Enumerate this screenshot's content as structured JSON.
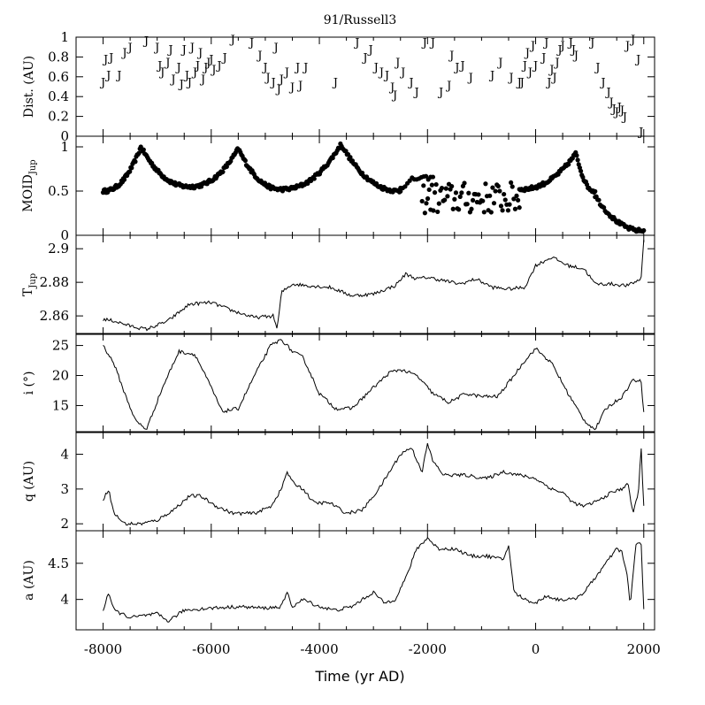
{
  "chart_data": {
    "type": "line",
    "title": "91/Russell3",
    "xlabel": "Time (yr AD)",
    "xlim": [
      -8500,
      2200
    ],
    "x_ticks": [
      -8000,
      -6000,
      -4000,
      -2000,
      0,
      2000
    ],
    "x_tick_labels": [
      "-8000",
      "-6000",
      "-4000",
      "-2000",
      "0",
      "2000"
    ],
    "panels": [
      {
        "key": "dist",
        "type": "scatter",
        "ylabel_main": "Dist. (AU)",
        "ylabel_sub": "",
        "ylim": [
          0,
          1
        ],
        "y_ticks": [
          0,
          0.2,
          0.4,
          0.6,
          0.8,
          1
        ],
        "y_tick_labels": [
          "0",
          "0.2",
          "0.4",
          "0.6",
          "0.8",
          "1"
        ],
        "marker": "J",
        "x": [
          -8000,
          -7950,
          -7900,
          -7850,
          -7700,
          -7600,
          -7500,
          -7200,
          -7000,
          -6950,
          -6900,
          -6800,
          -6750,
          -6700,
          -6600,
          -6550,
          -6500,
          -6450,
          -6400,
          -6350,
          -6300,
          -6250,
          -6200,
          -6150,
          -6100,
          -6050,
          -6000,
          -5950,
          -5850,
          -5750,
          -5600,
          -5250,
          -5100,
          -5000,
          -4950,
          -4850,
          -4800,
          -4750,
          -4700,
          -4600,
          -4500,
          -4400,
          -4350,
          -4250,
          -3700,
          -3300,
          -3150,
          -3050,
          -2950,
          -2850,
          -2750,
          -2650,
          -2600,
          -2550,
          -2450,
          -2300,
          -2200,
          -2050,
          -1900,
          -1750,
          -1600,
          -1550,
          -1450,
          -1350,
          -1200,
          -800,
          -650,
          -450,
          -300,
          -250,
          -200,
          -150,
          -100,
          -50,
          0,
          150,
          200,
          250,
          300,
          350,
          400,
          450,
          500,
          650,
          700,
          750,
          1050,
          1150,
          1250,
          1350,
          1400,
          1450,
          1500,
          1550,
          1600,
          1650,
          1700,
          1800,
          1900,
          1950
        ],
        "y": [
          0.55,
          0.78,
          0.62,
          0.8,
          0.62,
          0.85,
          0.9,
          0.97,
          0.9,
          0.72,
          0.65,
          0.75,
          0.88,
          0.58,
          0.7,
          0.53,
          0.88,
          0.62,
          0.55,
          0.9,
          0.65,
          0.72,
          0.85,
          0.58,
          0.7,
          0.75,
          0.78,
          0.68,
          0.72,
          0.8,
          0.98,
          0.95,
          0.82,
          0.7,
          0.6,
          0.55,
          0.9,
          0.48,
          0.58,
          0.65,
          0.5,
          0.7,
          0.52,
          0.7,
          0.55,
          0.95,
          0.8,
          0.88,
          0.7,
          0.65,
          0.62,
          0.5,
          0.42,
          0.75,
          0.65,
          0.55,
          0.45,
          0.95,
          0.95,
          0.45,
          0.52,
          0.82,
          0.7,
          0.72,
          0.6,
          0.62,
          0.75,
          0.6,
          0.55,
          0.55,
          0.72,
          0.85,
          0.65,
          0.92,
          0.72,
          0.8,
          0.95,
          0.55,
          0.68,
          0.6,
          0.75,
          0.88,
          0.92,
          0.95,
          0.88,
          0.82,
          0.95,
          0.7,
          0.55,
          0.45,
          0.35,
          0.28,
          0.25,
          0.3,
          0.27,
          0.2,
          0.92,
          0.98,
          0.78,
          0.05
        ],
        "y_label_offsets": [
          0
        ],
        "cap": 1
      },
      {
        "key": "moid",
        "type": "scatter",
        "ylabel_main": "MOID",
        "ylabel_sub": "Jup",
        "ylim": [
          0,
          1.12
        ],
        "y_ticks": [
          0,
          0.5,
          1
        ],
        "y_tick_labels": [
          "0",
          "0.5",
          "1"
        ],
        "marker": "dot",
        "series": [
          {
            "name": "",
            "shape": "peak",
            "x0": -8000,
            "x1": -6400,
            "xp": -7300,
            "y0": 0.5,
            "yp": 1.0,
            "y1": 0.55,
            "n": 95
          },
          {
            "name": "",
            "shape": "peak",
            "x0": -6400,
            "x1": -4700,
            "xp": -5500,
            "y0": 0.55,
            "yp": 0.98,
            "y1": 0.52,
            "n": 95
          },
          {
            "name": "",
            "shape": "peak",
            "x0": -4700,
            "x1": -2500,
            "xp": -3600,
            "y0": 0.52,
            "yp": 1.03,
            "y1": 0.5,
            "n": 110
          },
          {
            "name": "",
            "shape": "peak",
            "x0": -2500,
            "x1": -1900,
            "xp": -2300,
            "y0": 0.55,
            "yp": 0.63,
            "y1": 0.65,
            "n": 15
          },
          {
            "name": "",
            "shape": "noisy",
            "x0": -2100,
            "x1": -300,
            "base": 0.42,
            "amp": 0.18,
            "n": 70
          },
          {
            "name": "",
            "shape": "peak",
            "x0": -300,
            "x1": 1100,
            "xp": 750,
            "y0": 0.52,
            "yp": 0.93,
            "y1": 0.5,
            "n": 75
          },
          {
            "name": "",
            "shape": "peak",
            "x0": 1100,
            "x1": 2000,
            "xp": 1100,
            "y0": 0.45,
            "yp": 0.45,
            "y1": 0.05,
            "n": 40
          }
        ]
      },
      {
        "key": "tjup",
        "type": "line",
        "ylabel_main": "T",
        "ylabel_sub": "Jup",
        "ylim": [
          2.849,
          2.908
        ],
        "y_ticks": [
          2.86,
          2.88,
          2.9
        ],
        "y_tick_labels": [
          "2.86",
          "2.88",
          "2.9"
        ],
        "x": [
          -8000,
          -7800,
          -7500,
          -7200,
          -6800,
          -6400,
          -6000,
          -5600,
          -5200,
          -4850,
          -4780,
          -4700,
          -4500,
          -4200,
          -3800,
          -3400,
          -3000,
          -2600,
          -2400,
          -2200,
          -2000,
          -1700,
          -1400,
          -1100,
          -800,
          -500,
          -200,
          0,
          300,
          600,
          900,
          1100,
          1400,
          1700,
          1950,
          2000
        ],
        "y": [
          2.858,
          2.857,
          2.854,
          2.852,
          2.857,
          2.867,
          2.868,
          2.863,
          2.859,
          2.86,
          2.852,
          2.874,
          2.879,
          2.878,
          2.877,
          2.872,
          2.873,
          2.878,
          2.885,
          2.882,
          2.883,
          2.881,
          2.879,
          2.882,
          2.877,
          2.876,
          2.877,
          2.89,
          2.895,
          2.89,
          2.888,
          2.879,
          2.879,
          2.878,
          2.882,
          2.906
        ]
      },
      {
        "key": "inc",
        "type": "line",
        "ylabel_main": "i (°)",
        "ylabel_sub": "",
        "ylim": [
          10.5,
          27
        ],
        "y_ticks": [
          15,
          20,
          25
        ],
        "y_tick_labels": [
          "15",
          "20",
          "25"
        ],
        "x": [
          -8000,
          -7800,
          -7600,
          -7400,
          -7200,
          -6900,
          -6600,
          -6300,
          -6000,
          -5800,
          -5500,
          -5200,
          -4900,
          -4700,
          -4500,
          -4300,
          -4000,
          -3700,
          -3400,
          -3000,
          -2700,
          -2500,
          -2200,
          -1900,
          -1600,
          -1300,
          -1000,
          -700,
          -400,
          -200,
          0,
          300,
          600,
          900,
          1100,
          1300,
          1600,
          1800,
          1950,
          2000
        ],
        "y": [
          25,
          22,
          17,
          12.5,
          11,
          18,
          24,
          23.5,
          18,
          14,
          14.5,
          20,
          25,
          26,
          24,
          23,
          17,
          14.5,
          14.5,
          18,
          20.5,
          21,
          20,
          17,
          15.5,
          17,
          16.5,
          16.5,
          20,
          22.5,
          24.5,
          22,
          17,
          12.5,
          11,
          14.5,
          16.5,
          19.3,
          19,
          14
        ]
      },
      {
        "key": "q",
        "type": "line",
        "ylabel_main": "q (AU)",
        "ylabel_sub": "",
        "ylim": [
          1.8,
          4.65
        ],
        "y_ticks": [
          2,
          3,
          4
        ],
        "y_tick_labels": [
          "2",
          "3",
          "4"
        ],
        "x": [
          -8000,
          -7900,
          -7800,
          -7600,
          -7300,
          -7000,
          -6700,
          -6400,
          -6200,
          -5900,
          -5600,
          -5200,
          -4900,
          -4700,
          -4600,
          -4500,
          -4300,
          -4100,
          -3800,
          -3500,
          -3200,
          -2900,
          -2700,
          -2500,
          -2300,
          -2100,
          -2000,
          -1900,
          -1700,
          -1300,
          -900,
          -600,
          -300,
          0,
          300,
          500,
          700,
          900,
          1200,
          1400,
          1600,
          1700,
          1800,
          1900,
          1950,
          2000
        ],
        "y": [
          2.7,
          3.0,
          2.3,
          2.0,
          2.0,
          2.1,
          2.4,
          2.8,
          2.8,
          2.5,
          2.3,
          2.3,
          2.5,
          3.0,
          3.5,
          3.2,
          3.0,
          2.6,
          2.6,
          2.3,
          2.4,
          3.0,
          3.5,
          4.0,
          4.2,
          3.5,
          4.3,
          3.8,
          3.4,
          3.4,
          3.3,
          3.5,
          3.4,
          3.3,
          3.0,
          2.9,
          2.6,
          2.5,
          2.7,
          2.9,
          3.0,
          3.2,
          2.3,
          2.9,
          4.2,
          2.5
        ]
      },
      {
        "key": "a",
        "type": "line",
        "ylabel_main": "a (AU)",
        "ylabel_sub": "",
        "ylim": [
          3.58,
          4.95
        ],
        "y_ticks": [
          4,
          4.5
        ],
        "y_tick_labels": [
          "4",
          "4.5"
        ],
        "x": [
          -8000,
          -7900,
          -7800,
          -7500,
          -7000,
          -6800,
          -6500,
          -6000,
          -5500,
          -5000,
          -4700,
          -4600,
          -4500,
          -4300,
          -4000,
          -3700,
          -3400,
          -3000,
          -2800,
          -2600,
          -2400,
          -2200,
          -2000,
          -1800,
          -1500,
          -1200,
          -900,
          -600,
          -500,
          -400,
          -200,
          0,
          200,
          400,
          700,
          900,
          1100,
          1300,
          1400,
          1500,
          1600,
          1700,
          1750,
          1850,
          1950,
          2000
        ],
        "y": [
          3.85,
          4.1,
          3.85,
          3.75,
          3.8,
          3.7,
          3.85,
          3.88,
          3.9,
          3.88,
          3.9,
          4.1,
          3.9,
          4.0,
          3.9,
          3.85,
          3.9,
          4.1,
          3.95,
          4.0,
          4.3,
          4.7,
          4.85,
          4.7,
          4.7,
          4.6,
          4.6,
          4.55,
          4.75,
          4.1,
          4.0,
          3.95,
          4.05,
          4.0,
          4.0,
          4.1,
          4.3,
          4.5,
          4.6,
          4.7,
          4.65,
          4.3,
          3.9,
          4.75,
          4.8,
          3.85
        ]
      }
    ]
  }
}
